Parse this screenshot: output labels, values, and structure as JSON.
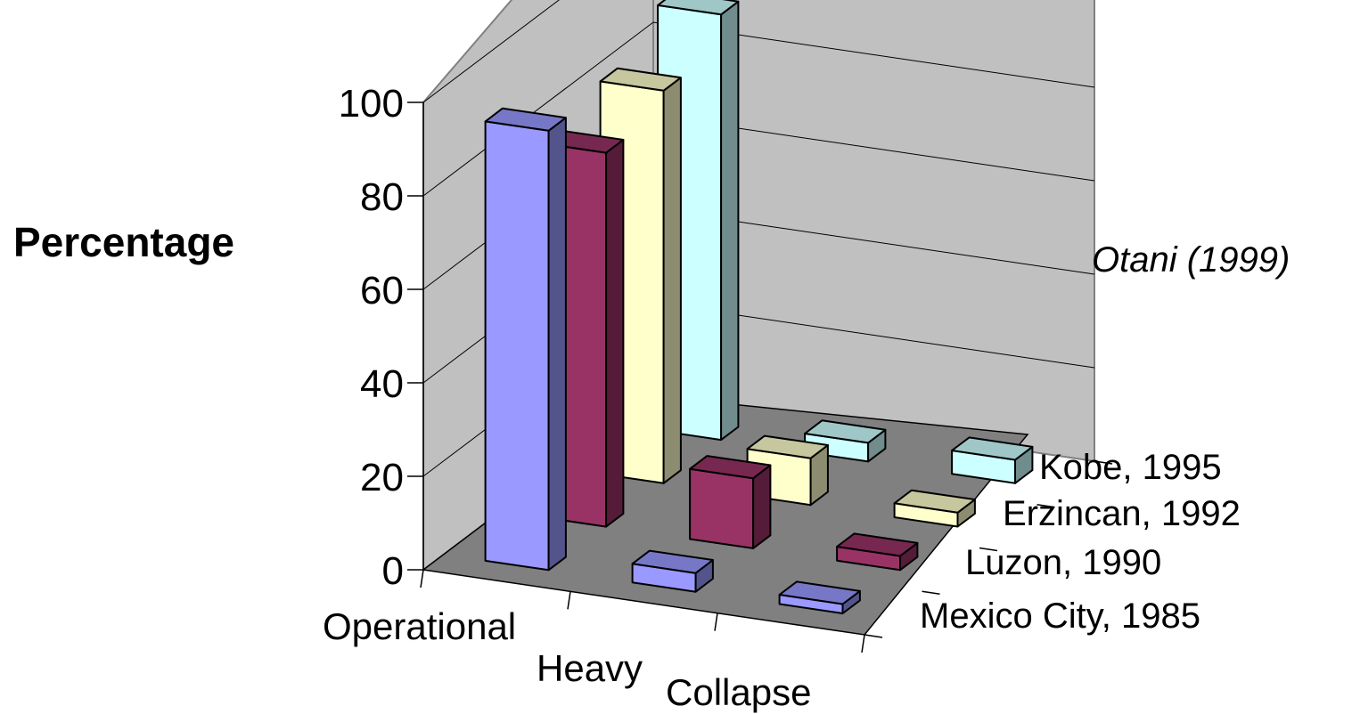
{
  "chart_data": {
    "type": "bar",
    "subtype": "3d-column",
    "title": "",
    "ylabel": "Percentage",
    "annotation": "Otani (1999)",
    "ylim": [
      0,
      100
    ],
    "yticks": [
      "0",
      "20",
      "40",
      "60",
      "80",
      "100"
    ],
    "categories": [
      "Operational",
      "Heavy",
      "Collapse"
    ],
    "series": [
      {
        "name": "Mexico City, 1985",
        "values": [
          94,
          4,
          2
        ],
        "color": "#9999ff"
      },
      {
        "name": "Luzon, 1990",
        "values": [
          80,
          15,
          3
        ],
        "color": "#993366"
      },
      {
        "name": "Erzincan, 1992",
        "values": [
          84,
          10,
          3
        ],
        "color": "#ffffcc"
      },
      {
        "name": "Kobe, 1995",
        "values": [
          91,
          4,
          5
        ],
        "color": "#ccffff"
      }
    ],
    "grid": true,
    "legend": "none"
  }
}
